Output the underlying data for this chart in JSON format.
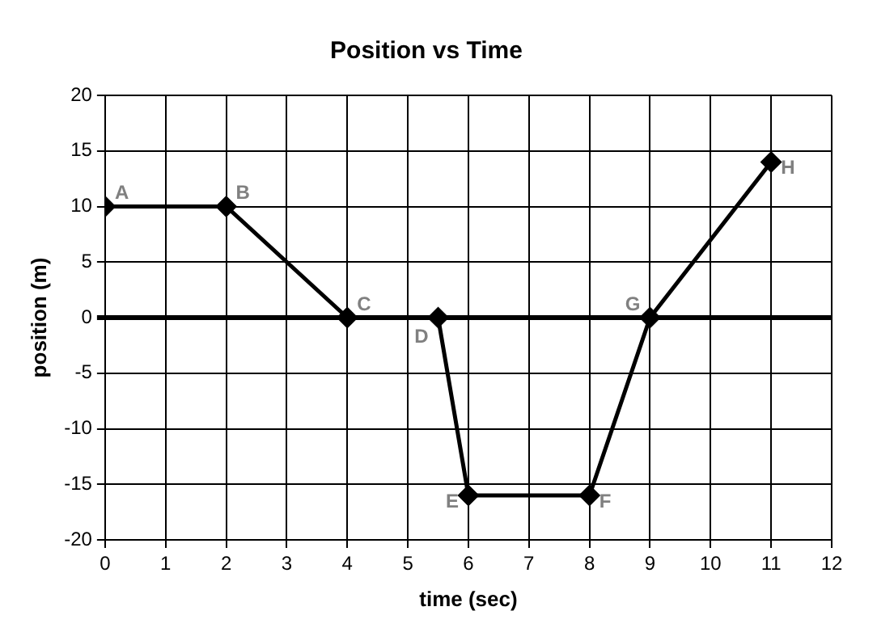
{
  "chart_data": {
    "type": "line",
    "title": "Position vs Time",
    "xlabel": "time (sec)",
    "ylabel": "position (m)",
    "series": [
      {
        "color": "#000000",
        "x": [
          0,
          2,
          4,
          5.5,
          6,
          8,
          9,
          11
        ],
        "values": [
          10,
          10,
          0,
          0,
          -16,
          -16,
          0,
          14
        ]
      }
    ],
    "xlim": [
      0,
      12
    ],
    "xticks": [
      0,
      1,
      2,
      3,
      4,
      5,
      6,
      7,
      8,
      9,
      10,
      11,
      12
    ],
    "ylim": [
      -20,
      20
    ],
    "yticks": [
      -20,
      -15,
      -10,
      -5,
      0,
      5,
      10,
      15,
      20
    ],
    "grid": true,
    "legend": false,
    "marker": "diamond",
    "line_style": "solid",
    "annotations": [
      {
        "text": "A",
        "x": 0,
        "y": 10
      },
      {
        "text": "B",
        "x": 2,
        "y": 10
      },
      {
        "text": "C",
        "x": 4,
        "y": 0
      },
      {
        "text": "D",
        "x": 5.5,
        "y": 0
      },
      {
        "text": "E",
        "x": 6,
        "y": -16
      },
      {
        "text": "F",
        "x": 8,
        "y": -16
      },
      {
        "text": "G",
        "x": 9,
        "y": 0
      },
      {
        "text": "H",
        "x": 11,
        "y": 14
      }
    ]
  }
}
